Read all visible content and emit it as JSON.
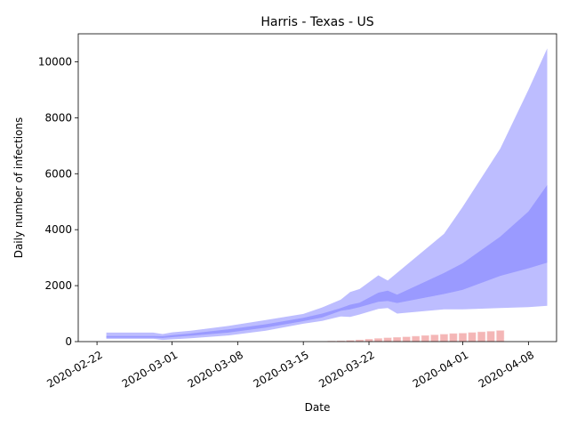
{
  "chart_data": {
    "type": "area",
    "title": "Harris - Texas - US",
    "xlabel": "Date",
    "ylabel": "Daily number of infections",
    "x_range": [
      "2020-02-20",
      "2020-04-11"
    ],
    "ylim": [
      0,
      11000
    ],
    "x_ticks": [
      "2020-02-22",
      "2020-03-01",
      "2020-03-08",
      "2020-03-15",
      "2020-03-22",
      "2020-04-01",
      "2020-04-08"
    ],
    "y_ticks": [
      0,
      2000,
      4000,
      6000,
      8000,
      10000
    ],
    "grid": false,
    "legend": "none",
    "colors": {
      "outer_band": "#bdbdff",
      "inner_band": "#9a9aff",
      "bars": "#f4b6b6",
      "bar_edge": "#f8d0d0"
    },
    "series": [
      {
        "kind": "band",
        "x": [
          "2020-02-23",
          "2020-02-28",
          "2020-02-29",
          "2020-03-01",
          "2020-03-03",
          "2020-03-07",
          "2020-03-11",
          "2020-03-15",
          "2020-03-17",
          "2020-03-19",
          "2020-03-20",
          "2020-03-21",
          "2020-03-23",
          "2020-03-24",
          "2020-03-25",
          "2020-03-30",
          "2020-04-01",
          "2020-04-05",
          "2020-04-08",
          "2020-04-10"
        ],
        "lower": [
          100,
          100,
          60,
          80,
          120,
          220,
          390,
          640,
          740,
          900,
          880,
          970,
          1170,
          1200,
          1000,
          1150,
          1150,
          1200,
          1230,
          1280
        ],
        "upper": [
          320,
          320,
          270,
          330,
          390,
          560,
          770,
          990,
          1220,
          1500,
          1770,
          1880,
          2370,
          2180,
          2460,
          3850,
          4820,
          6900,
          9000,
          10480
        ]
      },
      {
        "kind": "band",
        "x": [
          "2020-02-23",
          "2020-02-28",
          "2020-02-29",
          "2020-03-01",
          "2020-03-03",
          "2020-03-07",
          "2020-03-11",
          "2020-03-15",
          "2020-03-17",
          "2020-03-19",
          "2020-03-20",
          "2020-03-21",
          "2020-03-23",
          "2020-03-24",
          "2020-03-25",
          "2020-03-30",
          "2020-04-01",
          "2020-04-05",
          "2020-04-08",
          "2020-04-10"
        ],
        "lower": [
          140,
          140,
          130,
          160,
          210,
          320,
          500,
          730,
          860,
          1100,
          1150,
          1230,
          1420,
          1450,
          1380,
          1700,
          1850,
          2350,
          2620,
          2820
        ],
        "upper": [
          200,
          200,
          190,
          230,
          290,
          440,
          620,
          850,
          1000,
          1200,
          1320,
          1390,
          1750,
          1820,
          1680,
          2450,
          2800,
          3750,
          4650,
          5600
        ]
      },
      {
        "kind": "bar",
        "x": [
          "2020-03-18",
          "2020-03-19",
          "2020-03-20",
          "2020-03-21",
          "2020-03-22",
          "2020-03-23",
          "2020-03-24",
          "2020-03-25",
          "2020-03-26",
          "2020-03-27",
          "2020-03-28",
          "2020-03-29",
          "2020-03-30",
          "2020-03-31",
          "2020-04-01",
          "2020-04-02",
          "2020-04-03",
          "2020-04-04",
          "2020-04-05"
        ],
        "values": [
          15,
          25,
          40,
          60,
          85,
          110,
          135,
          150,
          170,
          190,
          215,
          240,
          260,
          285,
          300,
          320,
          345,
          365,
          395
        ]
      }
    ]
  }
}
